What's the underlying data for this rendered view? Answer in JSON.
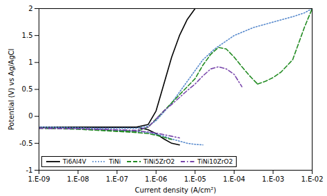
{
  "chart_data": {
    "type": "line",
    "xlabel": "Current density (A/cm²)",
    "ylabel": "Potential (V) vs Ag/AgCl",
    "log": "x",
    "grid": false,
    "legend": "lower left",
    "xlim": [
      1e-09,
      0.01
    ],
    "xticks": [
      {
        "value": 1e-09,
        "label": "1.E-09"
      },
      {
        "value": 1e-08,
        "label": "1.E-08"
      },
      {
        "value": 1e-07,
        "label": "1.E-07"
      },
      {
        "value": 1e-06,
        "label": "1.E-06"
      },
      {
        "value": 1e-05,
        "label": "1.E-05"
      },
      {
        "value": 0.0001,
        "label": "1.E-04"
      },
      {
        "value": 0.001,
        "label": "1.E-03"
      },
      {
        "value": 0.01,
        "label": "1.E-02"
      }
    ],
    "ylim": [
      -1.0,
      2.0
    ],
    "yticks": [
      -1,
      -0.5,
      0,
      0.5,
      1,
      1.5,
      2
    ],
    "series": [
      {
        "name": "Ti6Al4V",
        "color": "#000000",
        "line_style": "solid",
        "x": [
          1e-09,
          1e-08,
          1e-07,
          3.1622776601683797e-07,
          6.309573444801933e-07,
          1e-06,
          1.5848931924611137e-06,
          2.51188643150958e-06,
          3.981071705534973e-06,
          6.309573444801933e-06,
          1e-05,
          null,
          1e-09,
          1e-08,
          1e-07,
          3.1622776601683797e-07,
          6.309573444801933e-07,
          1e-06,
          1.5848931924611137e-06,
          2.51188643150958e-06,
          3.981071705534973e-06
        ],
        "values": [
          -0.2,
          -0.2,
          -0.2,
          -0.2,
          -0.15,
          0.1,
          0.6,
          1.1,
          1.5,
          1.8,
          2.0,
          null,
          -0.2,
          -0.2,
          -0.2,
          -0.2,
          -0.25,
          -0.32,
          -0.42,
          -0.5,
          -0.53
        ]
      },
      {
        "name": "TiNi",
        "color": "#5588cc",
        "line_style": "dotted",
        "x": [
          1e-09,
          1e-08,
          3.162277660168379e-08,
          1e-07,
          3.1622776601683797e-07,
          6.309573444801933e-07,
          1e-06,
          1.5848931924611137e-06,
          2.51188643150958e-06,
          3.981071705534973e-06,
          6.309573444801933e-06,
          1e-05,
          1.5848931924611134e-05,
          3.1622776601683795e-05,
          6.309573444801933e-05,
          0.0001,
          0.00031622776601683794,
          0.001,
          0.0031622776601683794,
          0.006309573444801933,
          0.01,
          null,
          1e-09,
          1e-08,
          3.162277660168379e-08,
          1e-07,
          3.1622776601683797e-07,
          6.309573444801933e-07,
          1e-06,
          1.5848931924611137e-06,
          2.51188643150958e-06,
          3.981071705534973e-06,
          6.309573444801933e-06,
          1e-05,
          1.5848931924611134e-05
        ],
        "values": [
          -0.2,
          -0.21,
          -0.22,
          -0.22,
          -0.22,
          -0.18,
          -0.08,
          0.08,
          0.25,
          0.45,
          0.65,
          0.85,
          1.05,
          1.25,
          1.4,
          1.5,
          1.65,
          1.75,
          1.85,
          1.92,
          2.0,
          null,
          -0.2,
          -0.22,
          -0.24,
          -0.26,
          -0.28,
          -0.3,
          -0.33,
          -0.37,
          -0.42,
          -0.46,
          -0.5,
          -0.52,
          -0.53
        ]
      },
      {
        "name": "TiNi5ZrO2",
        "color": "#228B22",
        "line_style": "dashed",
        "x": [
          1e-09,
          1e-08,
          3.162277660168379e-08,
          1e-07,
          3.1622776601683797e-07,
          6.309573444801933e-07,
          1e-06,
          1.5848931924611137e-06,
          2.51188643150958e-06,
          3.981071705534973e-06,
          6.309573444801933e-06,
          1e-05,
          1.5848931924611134e-05,
          2.51188643150958e-05,
          3.981071705534973e-05,
          6.309573444801933e-05,
          0.0001,
          0.00015848931924611136,
          0.000251188643150958,
          0.0003981071705534973,
          null,
          0.0003981071705534973,
          0.0006309573444801933,
          0.001,
          0.0015848931924611136,
          0.0031622776601683794,
          0.006309573444801933,
          0.01,
          null,
          1e-09,
          1e-08,
          3.162277660168379e-08,
          1e-07,
          3.1622776601683797e-07,
          6.309573444801933e-07,
          1e-06,
          1.5848931924611137e-06,
          2.51188643150958e-06
        ],
        "values": [
          -0.22,
          -0.23,
          -0.25,
          -0.27,
          -0.28,
          -0.2,
          -0.05,
          0.1,
          0.25,
          0.4,
          0.55,
          0.7,
          0.95,
          1.15,
          1.28,
          1.25,
          1.1,
          0.92,
          0.75,
          0.6,
          null,
          0.6,
          0.65,
          0.72,
          0.82,
          1.05,
          1.65,
          2.0,
          null,
          -0.22,
          -0.24,
          -0.26,
          -0.28,
          -0.3,
          -0.32,
          -0.35,
          -0.39,
          -0.43
        ]
      },
      {
        "name": "TiNi10ZrO2",
        "color": "#7744aa",
        "line_style": "dashdot",
        "x": [
          1e-09,
          1e-08,
          3.162277660168379e-08,
          1e-07,
          3.1622776601683797e-07,
          6.309573444801933e-07,
          1e-06,
          1.5848931924611137e-06,
          2.51188643150958e-06,
          3.981071705534973e-06,
          6.309573444801933e-06,
          1e-05,
          1.5848931924611134e-05,
          2.51188643150958e-05,
          3.981071705534973e-05,
          6.309573444801933e-05,
          0.0001,
          0.00015848931924611136,
          null,
          1e-09,
          1e-08,
          3.162277660168379e-08,
          1e-07,
          3.1622776601683797e-07,
          6.309573444801933e-07,
          1e-06,
          1.5848931924611137e-06,
          2.51188643150958e-06,
          3.981071705534973e-06
        ],
        "values": [
          -0.22,
          -0.23,
          -0.24,
          -0.25,
          -0.26,
          -0.2,
          -0.05,
          0.1,
          0.22,
          0.35,
          0.48,
          0.6,
          0.75,
          0.88,
          0.92,
          0.88,
          0.78,
          0.55,
          null,
          -0.22,
          -0.23,
          -0.24,
          -0.25,
          -0.27,
          -0.29,
          -0.31,
          -0.34,
          -0.37,
          -0.4
        ]
      }
    ]
  }
}
